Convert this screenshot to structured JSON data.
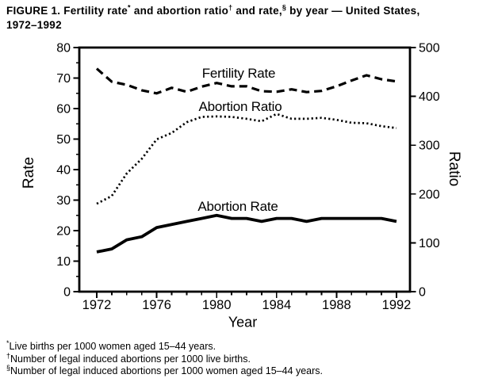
{
  "title": {
    "part1": "FIGURE 1. Fertility rate",
    "sup1": "*",
    "part2": " and abortion ratio",
    "sup2": "†",
    "part3": " and rate,",
    "sup3": "§",
    "part4": " by year — United States,",
    "line2": "1972–1992"
  },
  "footnotes": [
    {
      "sym": "*",
      "text": "Live births per 1000 women aged 15–44 years."
    },
    {
      "sym": "†",
      "text": "Number of legal induced abortions per 1000 live births."
    },
    {
      "sym": "§",
      "text": "Number of legal induced abortions per 1000 women aged 15–44 years."
    }
  ],
  "chart_data": {
    "type": "line",
    "title": "FIGURE 1. Fertility rate and abortion ratio and rate, by year — United States, 1972–1992",
    "x": [
      1972,
      1973,
      1974,
      1975,
      1976,
      1977,
      1978,
      1979,
      1980,
      1981,
      1982,
      1983,
      1984,
      1985,
      1986,
      1987,
      1988,
      1989,
      1990,
      1991,
      1992
    ],
    "xlabel": "Year",
    "ylabel_left": "Rate",
    "ylabel_right": "Ratio",
    "ylim_left": [
      0,
      80
    ],
    "ylim_right": [
      0,
      500
    ],
    "y_left_major_step": 10,
    "y_left_minor_step": 5,
    "y_right_major_step": 100,
    "x_major_tick_every": 4,
    "grid": false,
    "legend_position": "inline-labels",
    "line_color": "#000000",
    "background_color": "#ffffff",
    "series": [
      {
        "name": "Fertility Rate",
        "axis": "left",
        "style": "dashed",
        "values": [
          73.1,
          68.8,
          67.8,
          66.0,
          65.0,
          66.8,
          65.5,
          67.2,
          68.4,
          67.3,
          67.3,
          65.7,
          65.5,
          66.3,
          65.4,
          65.8,
          67.3,
          69.2,
          70.9,
          69.6,
          68.9
        ]
      },
      {
        "name": "Abortion Ratio",
        "axis": "right",
        "style": "dotted",
        "values": [
          180,
          196,
          242,
          272,
          312,
          325,
          347,
          358,
          359,
          358,
          354,
          349,
          364,
          354,
          354,
          356,
          352,
          346,
          345,
          339,
          335
        ]
      },
      {
        "name": "Abortion Rate",
        "axis": "left",
        "style": "solid",
        "values": [
          13,
          14,
          17,
          18,
          21,
          22,
          23,
          24,
          25,
          24,
          24,
          23,
          24,
          24,
          23,
          24,
          24,
          24,
          24,
          24,
          23
        ]
      }
    ]
  }
}
